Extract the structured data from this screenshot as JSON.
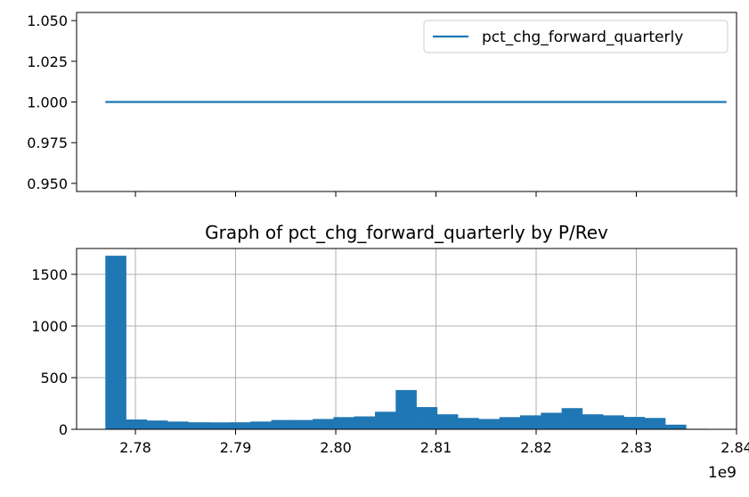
{
  "chart_data": [
    {
      "type": "line",
      "title": "",
      "xlabel": "",
      "ylabel": "",
      "xlim": [
        2.77413,
        2.84
      ],
      "ylim": [
        0.945,
        1.055
      ],
      "x_ticks": [
        2.78,
        2.79,
        2.8,
        2.81,
        2.82,
        2.83,
        2.84
      ],
      "y_ticks": [
        0.95,
        0.975,
        1.0,
        1.025,
        1.05
      ],
      "y_tick_labels": [
        "0.950",
        "0.975",
        "1.000",
        "1.025",
        "1.050"
      ],
      "grid": false,
      "legend": "upper right",
      "series": [
        {
          "name": "pct_chg_forward_quarterly",
          "color": "#1f77b4",
          "x": [
            2.777,
            2.839
          ],
          "y": [
            1.0,
            1.0
          ]
        }
      ]
    },
    {
      "type": "bar",
      "title": "Graph of pct_chg_forward_quarterly by P/Rev",
      "xlabel": "",
      "ylabel": "",
      "x_offset_label": "1e9",
      "xlim": [
        2.77413,
        2.84
      ],
      "ylim": [
        0,
        1750
      ],
      "x_ticks": [
        2.78,
        2.79,
        2.8,
        2.81,
        2.82,
        2.83,
        2.84
      ],
      "x_tick_labels": [
        "2.78",
        "2.79",
        "2.80",
        "2.81",
        "2.82",
        "2.83",
        "2.84"
      ],
      "y_ticks": [
        0,
        500,
        1000,
        1500
      ],
      "y_tick_labels": [
        "0",
        "500",
        "1000",
        "1500"
      ],
      "grid": true,
      "color": "#1f77b4",
      "bin_start": 2.777,
      "bin_width": 0.00207,
      "values": [
        1680,
        95,
        85,
        75,
        68,
        67,
        68,
        75,
        90,
        90,
        100,
        118,
        125,
        170,
        380,
        215,
        145,
        110,
        100,
        118,
        135,
        160,
        205,
        145,
        135,
        120,
        110,
        45,
        5,
        3
      ]
    }
  ]
}
